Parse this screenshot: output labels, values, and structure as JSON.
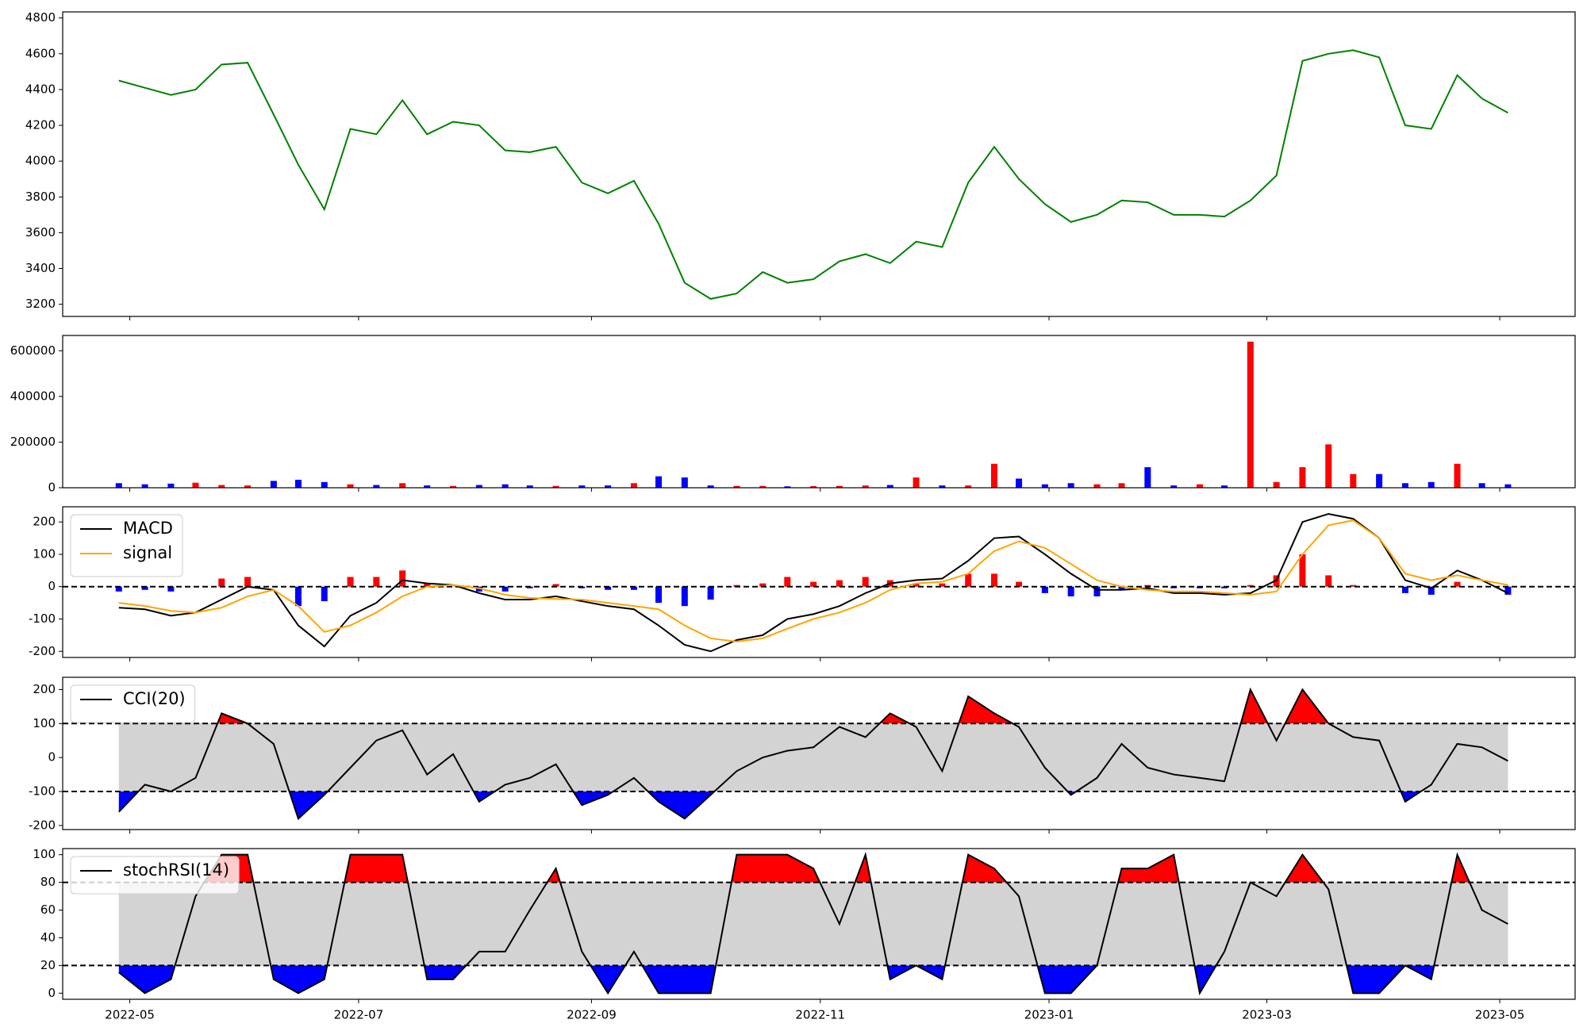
{
  "chart_data": {
    "type": "multi-panel",
    "x": [
      2022.321,
      2022.34,
      2022.359,
      2022.377,
      2022.396,
      2022.415,
      2022.434,
      2022.452,
      2022.471,
      2022.49,
      2022.509,
      2022.528,
      2022.546,
      2022.565,
      2022.584,
      2022.603,
      2022.621,
      2022.64,
      2022.659,
      2022.678,
      2022.697,
      2022.715,
      2022.734,
      2022.753,
      2022.772,
      2022.791,
      2022.809,
      2022.828,
      2022.847,
      2022.866,
      2022.884,
      2022.903,
      2022.922,
      2022.941,
      2022.96,
      2022.978,
      2022.997,
      2023.016,
      2023.035,
      2023.053,
      2023.072,
      2023.091,
      2023.11,
      2023.128,
      2023.147,
      2023.166,
      2023.185,
      2023.204,
      2023.222,
      2023.241,
      2023.26,
      2023.279,
      2023.298,
      2023.316,
      2023.335
    ],
    "xlim": [
      2022.28,
      2023.384
    ],
    "xticks": [
      {
        "value": 2022.329,
        "label": "2022-05"
      },
      {
        "value": 2022.496,
        "label": "2022-07"
      },
      {
        "value": 2022.666,
        "label": "2022-09"
      },
      {
        "value": 2022.833,
        "label": "2022-11"
      },
      {
        "value": 2023.0,
        "label": "2023-01"
      },
      {
        "value": 2023.159,
        "label": "2023-03"
      },
      {
        "value": 2023.329,
        "label": "2023-05"
      }
    ],
    "panels": [
      {
        "type": "line",
        "ylim": [
          3132,
          4834
        ],
        "yticks": [
          3200,
          3400,
          3600,
          3800,
          4000,
          4200,
          4400,
          4600,
          4800
        ],
        "series": [
          {
            "color": "green",
            "values": [
              4450,
              4410,
              4370,
              4400,
              4540,
              4550,
              4260,
              3980,
              3730,
              4180,
              4150,
              4340,
              4150,
              4220,
              4200,
              4060,
              4050,
              4080,
              3880,
              3820,
              3890,
              3650,
              3320,
              3230,
              3260,
              3380,
              3320,
              3340,
              3440,
              3480,
              3430,
              3550,
              3520,
              3880,
              4080,
              3900,
              3760,
              3660,
              3700,
              3780,
              3770,
              3700,
              3700,
              3690,
              3780,
              3920,
              4560,
              4600,
              4620,
              4580,
              4200,
              4180,
              4480,
              4350,
              4270
            ]
          }
        ]
      },
      {
        "type": "bar",
        "ylim": [
          0,
          667000
        ],
        "yticks": [
          0,
          200000,
          400000,
          600000
        ],
        "values": [
          20000,
          15000,
          18000,
          22000,
          12000,
          10000,
          30000,
          35000,
          25000,
          15000,
          12000,
          20000,
          10000,
          8000,
          12000,
          15000,
          10000,
          8000,
          10000,
          10000,
          20000,
          50000,
          45000,
          10000,
          8000,
          8000,
          6000,
          7000,
          8000,
          10000,
          12000,
          45000,
          10000,
          10000,
          105000,
          40000,
          15000,
          20000,
          15000,
          20000,
          90000,
          10000,
          15000,
          10000,
          640000,
          25000,
          90000,
          190000,
          60000,
          60000,
          20000,
          25000,
          105000,
          20000,
          15000
        ],
        "colors": [
          "blue",
          "blue",
          "blue",
          "red",
          "red",
          "red",
          "blue",
          "blue",
          "blue",
          "red",
          "blue",
          "red",
          "blue",
          "red",
          "blue",
          "blue",
          "blue",
          "red",
          "blue",
          "blue",
          "red",
          "blue",
          "blue",
          "blue",
          "red",
          "red",
          "blue",
          "red",
          "red",
          "red",
          "blue",
          "red",
          "blue",
          "red",
          "red",
          "blue",
          "blue",
          "blue",
          "red",
          "red",
          "blue",
          "blue",
          "red",
          "blue",
          "red",
          "red",
          "red",
          "red",
          "red",
          "blue",
          "blue",
          "blue",
          "red",
          "blue",
          "blue"
        ]
      },
      {
        "type": "line",
        "ylim": [
          -219,
          247
        ],
        "yticks": [
          -200,
          -100,
          0,
          100,
          200
        ],
        "hlines": [
          0
        ],
        "legend": "upper left",
        "series": [
          {
            "name": "MACD",
            "color": "black",
            "values": [
              -65,
              -70,
              -90,
              -80,
              -40,
              0,
              -10,
              -120,
              -185,
              -90,
              -50,
              20,
              10,
              5,
              -20,
              -40,
              -40,
              -30,
              -45,
              -60,
              -70,
              -120,
              -180,
              -200,
              -165,
              -150,
              -100,
              -85,
              -60,
              -20,
              10,
              20,
              25,
              80,
              150,
              155,
              100,
              40,
              -10,
              -10,
              -5,
              -20,
              -20,
              -25,
              -20,
              20,
              200,
              225,
              210,
              150,
              20,
              -5,
              50,
              20,
              -20
            ]
          },
          {
            "name": "signal",
            "color": "orange",
            "values": [
              -50,
              -60,
              -75,
              -80,
              -65,
              -30,
              -10,
              -60,
              -140,
              -120,
              -80,
              -30,
              0,
              5,
              -5,
              -25,
              -35,
              -38,
              -40,
              -50,
              -60,
              -70,
              -120,
              -160,
              -170,
              -160,
              -130,
              -100,
              -80,
              -50,
              -10,
              10,
              15,
              40,
              110,
              140,
              120,
              70,
              20,
              0,
              -10,
              -15,
              -15,
              -20,
              -25,
              -15,
              100,
              190,
              205,
              150,
              40,
              20,
              35,
              20,
              5
            ]
          }
        ],
        "histogram": {
          "pos_color": "red",
          "neg_color": "blue",
          "values": [
            -15,
            -10,
            -15,
            0,
            25,
            30,
            0,
            -60,
            -45,
            30,
            30,
            50,
            10,
            0,
            -15,
            -15,
            -5,
            8,
            -5,
            -10,
            -10,
            -50,
            -60,
            -40,
            5,
            10,
            30,
            15,
            20,
            30,
            20,
            10,
            10,
            40,
            40,
            15,
            -20,
            -30,
            -30,
            -10,
            5,
            -5,
            -5,
            -5,
            5,
            35,
            100,
            35,
            5,
            0,
            -20,
            -25,
            15,
            0,
            -25
          ]
        }
      },
      {
        "type": "line",
        "ylim": [
          -212,
          236
        ],
        "yticks": [
          -200,
          -100,
          0,
          100,
          200
        ],
        "levels": [
          -100,
          100
        ],
        "legend": "upper left",
        "fill_colors": {
          "above": "red",
          "between": "lightgray",
          "below": "blue"
        },
        "series": [
          {
            "name": "CCI(20)",
            "color": "black",
            "values": [
              -160,
              -80,
              -100,
              -60,
              130,
              100,
              40,
              -180,
              -110,
              -30,
              50,
              80,
              -50,
              10,
              -130,
              -80,
              -60,
              -20,
              -140,
              -110,
              -60,
              -130,
              -180,
              -110,
              -40,
              0,
              20,
              30,
              90,
              60,
              130,
              90,
              -40,
              180,
              130,
              90,
              -30,
              -110,
              -60,
              40,
              -30,
              -50,
              -60,
              -70,
              200,
              50,
              200,
              100,
              60,
              50,
              -130,
              -80,
              40,
              30,
              -10
            ]
          }
        ]
      },
      {
        "type": "line",
        "ylim": [
          -4.4,
          104.4
        ],
        "yticks": [
          0,
          20,
          40,
          60,
          80,
          100
        ],
        "levels": [
          20,
          80
        ],
        "legend": "upper left",
        "fill_colors": {
          "above": "red",
          "between": "lightgray",
          "below": "blue"
        },
        "series": [
          {
            "name": "stochRSI(14)",
            "color": "black",
            "values": [
              15,
              0,
              10,
              70,
              100,
              100,
              10,
              0,
              10,
              100,
              100,
              100,
              10,
              10,
              30,
              30,
              60,
              90,
              30,
              0,
              30,
              0,
              0,
              0,
              100,
              100,
              100,
              90,
              50,
              100,
              10,
              20,
              10,
              100,
              90,
              70,
              0,
              0,
              20,
              90,
              90,
              100,
              0,
              30,
              80,
              70,
              100,
              75,
              0,
              0,
              20,
              10,
              100,
              60,
              50
            ]
          }
        ]
      }
    ]
  }
}
